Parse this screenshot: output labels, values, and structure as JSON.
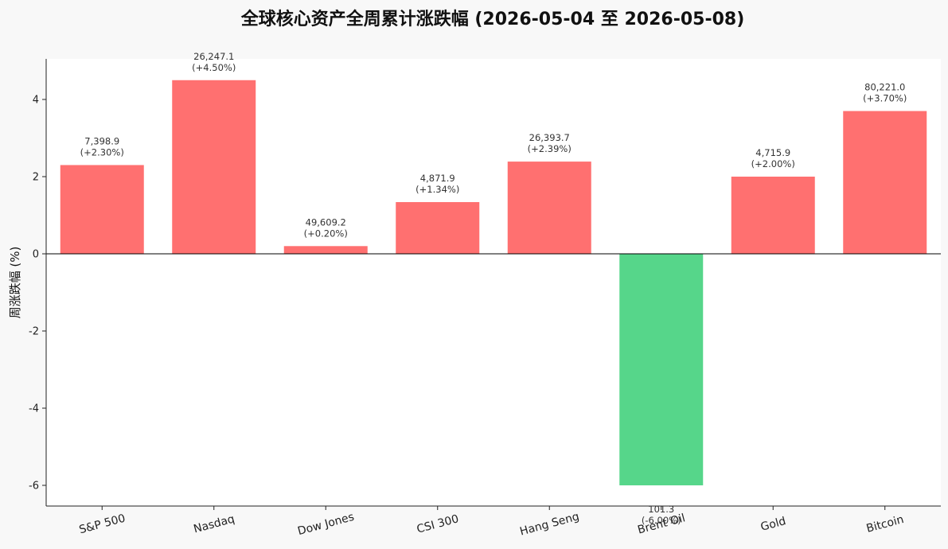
{
  "chart_data": {
    "type": "bar",
    "title": "全球核心资产全周累计涨跌幅 (2026-05-04 至 2026-05-08)",
    "xlabel": "",
    "ylabel": "周涨跌幅 (%)",
    "ylim": [
      -6.5,
      5.0
    ],
    "yticks": [
      -6,
      -4,
      -2,
      0,
      2,
      4
    ],
    "grid": false,
    "categories": [
      "S&P 500",
      "Nasdaq",
      "Dow Jones",
      "CSI 300",
      "Hang Seng",
      "Brent Oil",
      "Gold",
      "Bitcoin"
    ],
    "values": [
      2.3,
      4.5,
      0.2,
      1.34,
      2.39,
      -6.0,
      2.0,
      3.7
    ],
    "prices": [
      "7,398.9",
      "26,247.1",
      "49,609.2",
      "4,871.9",
      "26,393.7",
      "101.3",
      "4,715.9",
      "80,221.0"
    ],
    "pct_labels": [
      "(+2.30%)",
      "(+4.50%)",
      "(+0.20%)",
      "(+1.34%)",
      "(+2.39%)",
      "(-6.00%)",
      "(+2.00%)",
      "(+3.70%)"
    ],
    "colors": {
      "positive": "#ff7070",
      "negative": "#56d68a"
    }
  }
}
